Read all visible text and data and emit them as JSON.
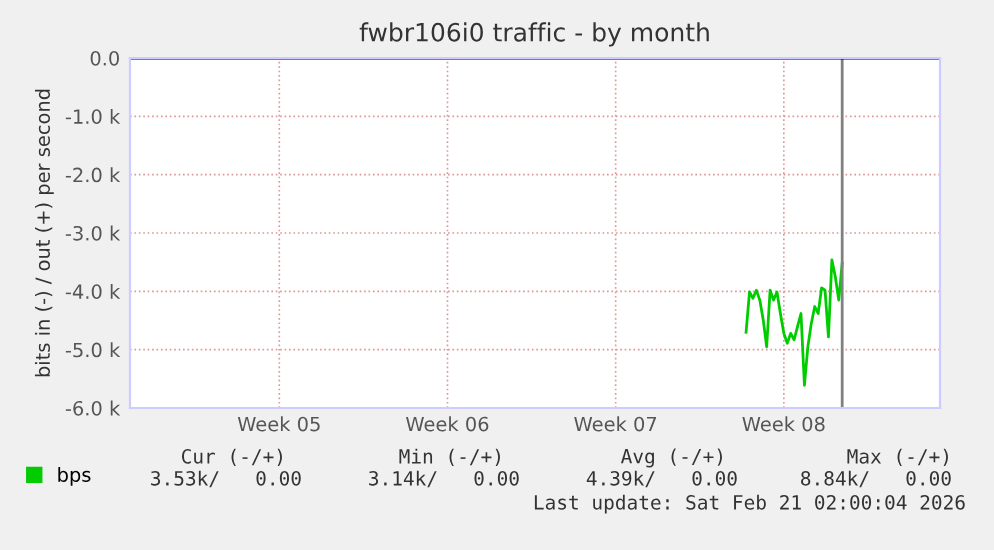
{
  "chart_data": {
    "type": "line",
    "title": "fwbr106i0 traffic - by month",
    "ylabel": "bits in (-) / out (+) per second",
    "categories": [
      null,
      null,
      null,
      null,
      null,
      null,
      null,
      null,
      null,
      null,
      null,
      null,
      null,
      null,
      null,
      null,
      null,
      null,
      null,
      null,
      null,
      null,
      null,
      null,
      null,
      null,
      null,
      null,
      null,
      null,
      null,
      null,
      null,
      null,
      null,
      null,
      null,
      null,
      null,
      null,
      null,
      null,
      null,
      "Week 05",
      null,
      null,
      null,
      null,
      null,
      null,
      null,
      null,
      null,
      null,
      null,
      null,
      null,
      null,
      null,
      null,
      null,
      null,
      null,
      null,
      null,
      null,
      null,
      null,
      null,
      null,
      null,
      null,
      null,
      null,
      null,
      null,
      null,
      null,
      null,
      null,
      null,
      null,
      null,
      null,
      null,
      null,
      null,
      null,
      null,
      null,
      null,
      null,
      "Week 06",
      null,
      null,
      null,
      null,
      null,
      null,
      null,
      null,
      null,
      null,
      null,
      null,
      null,
      null,
      null,
      null,
      null,
      null,
      null,
      null,
      null,
      null,
      null,
      null,
      null,
      null,
      null,
      null,
      null,
      null,
      null,
      null,
      null,
      null,
      null,
      null,
      null,
      null,
      null,
      null,
      null,
      null,
      null,
      null,
      null,
      null,
      null,
      null,
      "Week 07",
      null,
      null,
      null,
      null,
      null,
      null,
      null,
      null,
      null,
      null,
      null,
      null,
      null,
      null,
      null,
      null,
      null,
      null,
      null,
      null,
      null,
      null,
      null,
      null,
      null,
      null,
      null,
      null,
      null,
      null,
      null,
      null,
      null,
      null,
      null,
      null,
      null,
      null,
      null,
      null,
      null,
      null,
      null,
      null,
      null,
      null,
      null,
      null,
      "Week 08",
      null,
      null,
      null,
      null,
      null,
      null,
      null,
      null,
      null,
      null,
      null,
      null,
      null,
      null,
      null,
      null,
      null,
      null,
      null,
      null,
      null,
      null,
      null,
      null,
      null,
      null,
      null,
      null,
      null,
      null,
      null,
      null,
      null,
      null,
      null,
      null,
      null,
      null,
      null,
      null,
      null,
      null,
      null,
      null,
      null
    ],
    "series": [
      {
        "name": "bps",
        "color": "#00cc00",
        "values": [
          null,
          null,
          null,
          null,
          null,
          null,
          null,
          null,
          null,
          null,
          null,
          null,
          null,
          null,
          null,
          null,
          null,
          null,
          null,
          null,
          null,
          null,
          null,
          null,
          null,
          null,
          null,
          null,
          null,
          null,
          null,
          null,
          null,
          null,
          null,
          null,
          null,
          null,
          null,
          null,
          null,
          null,
          null,
          null,
          null,
          null,
          null,
          null,
          null,
          null,
          null,
          null,
          null,
          null,
          null,
          null,
          null,
          null,
          null,
          null,
          null,
          null,
          null,
          null,
          null,
          null,
          null,
          null,
          null,
          null,
          null,
          null,
          null,
          null,
          null,
          null,
          null,
          null,
          null,
          null,
          null,
          null,
          null,
          null,
          null,
          null,
          null,
          null,
          null,
          null,
          null,
          null,
          null,
          null,
          null,
          null,
          null,
          null,
          null,
          null,
          null,
          null,
          null,
          null,
          null,
          null,
          null,
          null,
          null,
          null,
          null,
          null,
          null,
          null,
          null,
          null,
          null,
          null,
          null,
          null,
          null,
          null,
          null,
          null,
          null,
          null,
          null,
          null,
          null,
          null,
          null,
          null,
          null,
          null,
          null,
          null,
          null,
          null,
          null,
          null,
          null,
          null,
          null,
          null,
          null,
          null,
          null,
          null,
          null,
          null,
          null,
          null,
          null,
          null,
          null,
          null,
          null,
          null,
          null,
          null,
          null,
          null,
          null,
          null,
          null,
          null,
          null,
          null,
          null,
          null,
          null,
          null,
          null,
          null,
          null,
          null,
          null,
          null,
          null,
          -4700,
          -4010,
          -4120,
          -3980,
          -4150,
          -4490,
          -4950,
          -3980,
          -4150,
          -4010,
          -4380,
          -4720,
          -4890,
          -4720,
          -4830,
          -4600,
          -4380,
          -5610,
          -4950,
          -4550,
          -4260,
          -4380,
          -3940,
          -3980,
          -4780,
          -3460,
          -3750,
          -4150,
          -3520,
          null,
          null,
          null,
          null,
          null,
          null,
          null,
          null,
          null,
          null,
          null,
          null,
          null,
          null,
          null,
          null,
          null,
          null,
          null,
          null,
          null,
          null,
          null,
          null,
          null,
          null,
          null,
          null
        ]
      }
    ],
    "ylim": [
      -6000,
      0
    ],
    "yticks": [
      {
        "value": 0,
        "label": "0.0"
      },
      {
        "value": -1000,
        "label": "-1.0 k"
      },
      {
        "value": -2000,
        "label": "-2.0 k"
      },
      {
        "value": -3000,
        "label": "-3.0 k"
      },
      {
        "value": -4000,
        "label": "-4.0 k"
      },
      {
        "value": -5000,
        "label": "-5.0 k"
      },
      {
        "value": -6000,
        "label": "-6.0 k"
      }
    ],
    "ref_lines": [
      {
        "axis": "y",
        "value": 0,
        "color": "#000000"
      }
    ],
    "grid": true,
    "legend": "bottom left",
    "annotations": [
      "Cur (-/+)",
      "Min (-/+)",
      "Avg (-/+)",
      "Max (-/+)",
      "3.53k/   0.00",
      "3.14k/   0.00",
      "4.39k/   0.00",
      "8.84k/   0.00",
      "Last update: Sat Feb 21 02:00:04 2026"
    ]
  }
}
